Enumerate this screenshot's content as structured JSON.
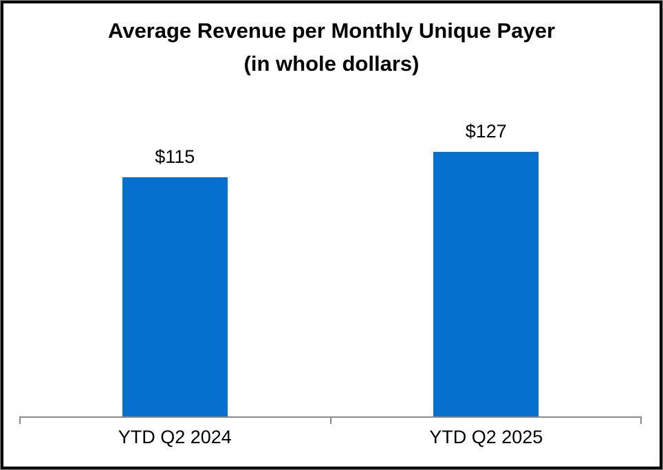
{
  "chart_data": {
    "type": "bar",
    "title": "Average Revenue per Monthly Unique Payer",
    "subtitle": "(in whole dollars)",
    "categories": [
      "YTD Q2 2024",
      "YTD Q2 2025"
    ],
    "values": [
      115,
      127
    ],
    "value_labels": [
      "$115",
      "$127"
    ],
    "xlabel": "",
    "ylabel": "",
    "ylim": [
      0,
      140
    ],
    "gridlines": false,
    "legend": "none",
    "bar_color": "#0670CE",
    "axis_color": "#898989",
    "text_color": "#000000",
    "background_color": "#FFFFFF",
    "border_color": "#000000"
  }
}
